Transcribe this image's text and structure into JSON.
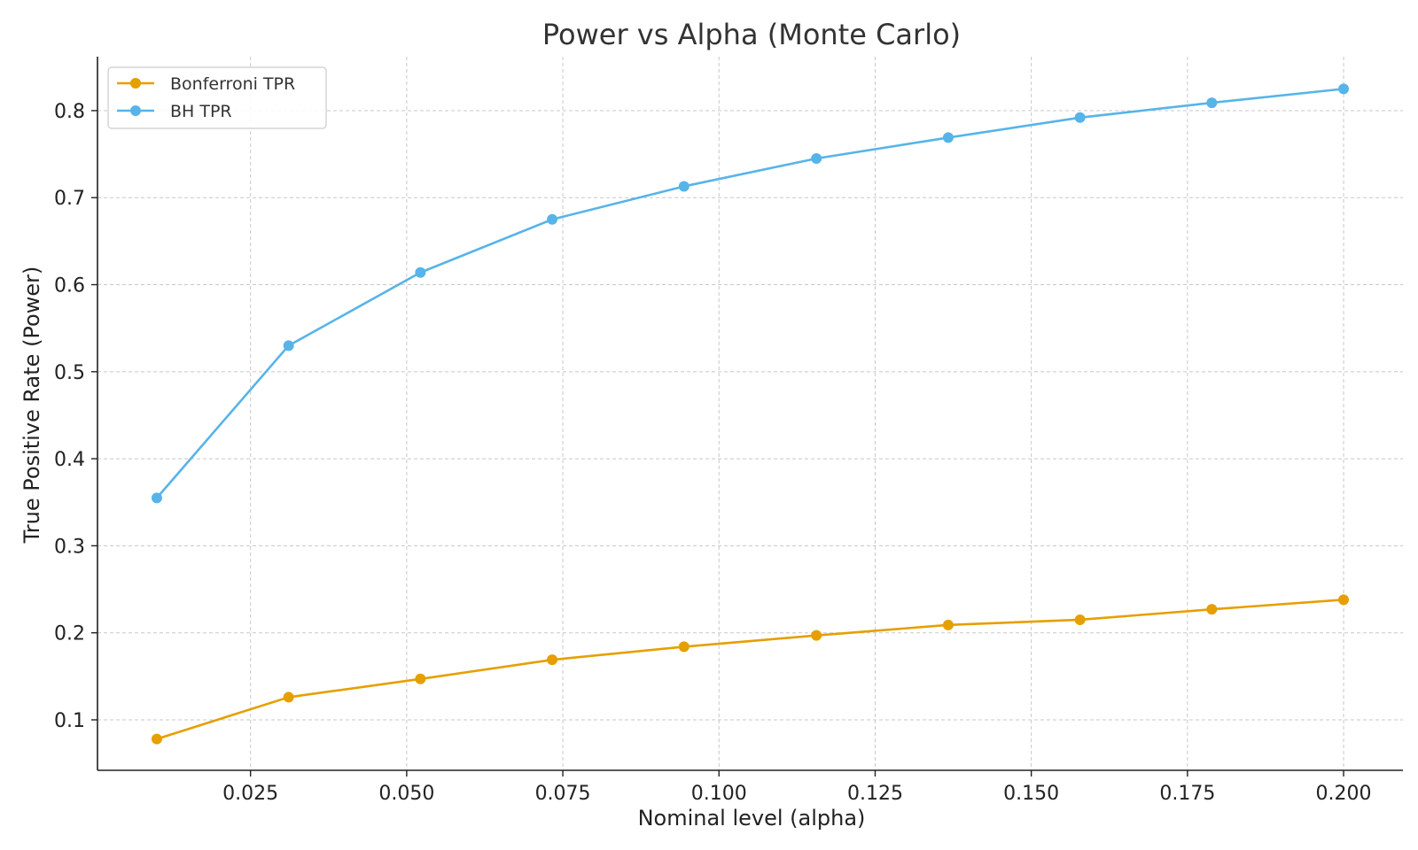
{
  "chart_data": {
    "type": "line",
    "title": "Power vs Alpha (Monte Carlo)",
    "xlabel": "Nominal level (alpha)",
    "ylabel": "True Positive Rate (Power)",
    "x": [
      0.01,
      0.0311,
      0.0522,
      0.0733,
      0.0944,
      0.1156,
      0.1367,
      0.1578,
      0.1789,
      0.2
    ],
    "series": [
      {
        "name": "Bonferroni TPR",
        "color": "#E69F00",
        "values": [
          0.078,
          0.126,
          0.147,
          0.169,
          0.184,
          0.197,
          0.209,
          0.215,
          0.227,
          0.238
        ]
      },
      {
        "name": "BH TPR",
        "color": "#56B4E9",
        "values": [
          0.355,
          0.53,
          0.614,
          0.675,
          0.713,
          0.745,
          0.769,
          0.792,
          0.809,
          0.825
        ]
      }
    ],
    "xlim": [
      0.0005,
      0.2095
    ],
    "ylim": [
      0.042,
      0.862
    ],
    "xticks": [
      "0.025",
      "0.050",
      "0.075",
      "0.100",
      "0.125",
      "0.150",
      "0.175",
      "0.200"
    ],
    "xtick_values": [
      0.025,
      0.05,
      0.075,
      0.1,
      0.125,
      0.15,
      0.175,
      0.2
    ],
    "yticks": [
      "0.1",
      "0.2",
      "0.3",
      "0.4",
      "0.5",
      "0.6",
      "0.7",
      "0.8"
    ],
    "ytick_values": [
      0.1,
      0.2,
      0.3,
      0.4,
      0.5,
      0.6,
      0.7,
      0.8
    ],
    "grid": true,
    "legend_position": "top-left"
  }
}
